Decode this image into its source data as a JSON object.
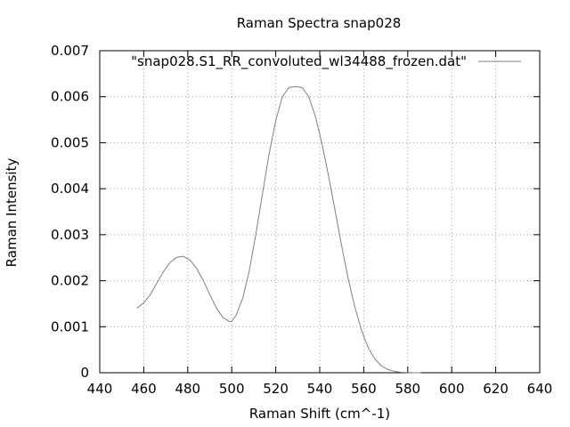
{
  "chart_data": {
    "type": "line",
    "title": "Raman Spectra snap028",
    "xlabel": "Raman Shift (cm^-1)",
    "ylabel": "Raman Intensity",
    "xlim": [
      440,
      640
    ],
    "ylim": [
      0,
      0.007
    ],
    "xticks": [
      440,
      460,
      480,
      500,
      520,
      540,
      560,
      580,
      600,
      620,
      640
    ],
    "yticks": [
      0,
      0.001,
      0.002,
      0.003,
      0.004,
      0.005,
      0.006,
      0.007
    ],
    "ytick_labels": [
      "0",
      "0.001",
      "0.002",
      "0.003",
      "0.004",
      "0.005",
      "0.006",
      "0.007"
    ],
    "grid": true,
    "grid_style": "dotted",
    "legend_position": "top-right",
    "line_color": "#808080",
    "series": [
      {
        "name": "\"snap028.S1_RR_convoluted_wl34488_frozen.dat\"",
        "x": [
          457,
          460,
          463,
          466,
          469,
          472,
          475,
          478,
          481,
          484,
          487,
          490,
          493,
          496,
          499,
          500,
          502,
          505,
          508,
          511,
          514,
          517,
          520,
          523,
          526,
          529,
          532,
          535,
          538,
          541,
          544,
          547,
          550,
          553,
          556,
          559,
          562,
          565,
          568,
          571,
          574,
          577,
          580,
          583,
          586
        ],
        "y": [
          0.00141,
          0.00152,
          0.0017,
          0.00195,
          0.0022,
          0.0024,
          0.00251,
          0.00253,
          0.00245,
          0.00227,
          0.00201,
          0.0017,
          0.00141,
          0.0012,
          0.00111,
          0.00112,
          0.00125,
          0.00162,
          0.00222,
          0.00302,
          0.0039,
          0.00476,
          0.00548,
          0.006,
          0.0062,
          0.00622,
          0.0062,
          0.006,
          0.00558,
          0.00498,
          0.00428,
          0.00352,
          0.00275,
          0.00203,
          0.00142,
          0.00092,
          0.00055,
          0.0003,
          0.00015,
          7e-05,
          3e-05,
          1e-05,
          4e-06,
          1e-06,
          0.0
        ]
      }
    ]
  }
}
